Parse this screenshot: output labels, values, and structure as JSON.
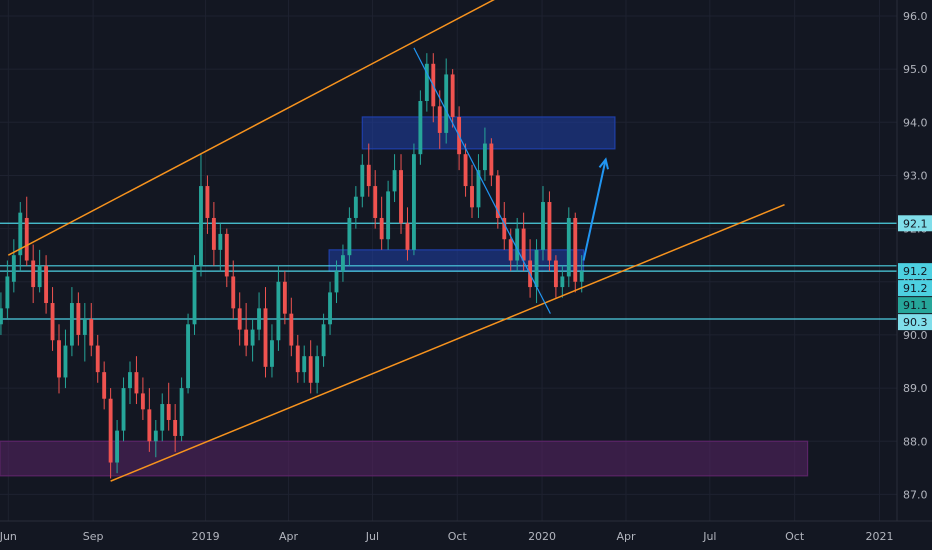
{
  "chart_data": {
    "type": "candlestick",
    "y_ticks": [
      87.0,
      88.0,
      89.0,
      90.0,
      91.0,
      92.0,
      93.0,
      94.0,
      95.0,
      96.0
    ],
    "y_tick_labels": [
      "87.0",
      "88.0",
      "89.0",
      "90.0",
      "91.0",
      "92.0",
      "93.0",
      "94.0",
      "95.0",
      "96.0"
    ],
    "ylim": [
      86.5,
      96.3
    ],
    "xlim": [
      "2018-05-23",
      "2021-01-20"
    ],
    "x_ticks": [
      {
        "date": "2018-06-01",
        "label": "Jun"
      },
      {
        "date": "2018-09-01",
        "label": "Sep"
      },
      {
        "date": "2019-01-01",
        "label": "2019"
      },
      {
        "date": "2019-04-01",
        "label": "Apr"
      },
      {
        "date": "2019-07-01",
        "label": "Jul"
      },
      {
        "date": "2019-10-01",
        "label": "Oct"
      },
      {
        "date": "2020-01-01",
        "label": "2020"
      },
      {
        "date": "2020-04-01",
        "label": "Apr"
      },
      {
        "date": "2020-07-01",
        "label": "Jul"
      },
      {
        "date": "2020-10-01",
        "label": "Oct"
      },
      {
        "date": "2021-01-01",
        "label": "2021"
      }
    ],
    "colors": {
      "background": "#131722",
      "grid": "#1e2230",
      "up": "#26a69a",
      "down": "#ef5350",
      "channel": "#f7931e",
      "hline": "#4dd0e1",
      "trendline": "#2196f3",
      "zone_blue": "#1f3fa8",
      "zone_purple": "#5a2466",
      "arrow": "#2196f3"
    },
    "price_badges": [
      {
        "value": 92.1,
        "label": "92.1",
        "color": "#80deea"
      },
      {
        "value": 91.2,
        "label": "91.2",
        "color": "#4dd0e1"
      },
      {
        "value": 91.2,
        "label": "91.2",
        "color": "#4dd0e1"
      },
      {
        "value": 91.1,
        "label": "91.1",
        "color": "#26a69a"
      },
      {
        "value": 90.3,
        "label": "90.3",
        "color": "#80deea"
      }
    ],
    "hlines": [
      92.1,
      91.3,
      91.2,
      90.3
    ],
    "zones": [
      {
        "name": "supply-zone",
        "x0": "2019-06-20",
        "x1": "2020-03-20",
        "y0": 93.5,
        "y1": 94.1,
        "color": "#1f3fa8"
      },
      {
        "name": "middle-zone",
        "x0": "2019-05-15",
        "x1": "2020-02-15",
        "y0": 91.2,
        "y1": 91.6,
        "color": "#1f3fa8"
      },
      {
        "name": "demand-zone",
        "x0": "2018-05-23",
        "x1": "2020-10-15",
        "y0": 87.35,
        "y1": 88.0,
        "color": "#5a2466"
      }
    ],
    "channel_lines": [
      {
        "name": "channel-upper",
        "x0": "2018-06-01",
        "y0": 91.5,
        "x1": "2019-12-01",
        "y1": 96.5
      },
      {
        "name": "channel-lower",
        "x0": "2018-09-20",
        "y0": 87.25,
        "x1": "2020-09-20",
        "y1": 92.45
      }
    ],
    "trendline": {
      "x0": "2019-08-15",
      "y0": 95.4,
      "x1": "2020-01-10",
      "y1": 90.4
    },
    "arrow": {
      "x0": "2020-02-15",
      "y0": 91.4,
      "x1": "2020-03-10",
      "y1": 93.3
    },
    "ohlc": [
      [
        "2018-05-24",
        90.2,
        90.8,
        90.0,
        90.5
      ],
      [
        "2018-05-31",
        90.5,
        91.4,
        90.3,
        91.1
      ],
      [
        "2018-06-07",
        91.0,
        91.8,
        90.8,
        91.5
      ],
      [
        "2018-06-14",
        91.5,
        92.5,
        91.2,
        92.3
      ],
      [
        "2018-06-21",
        92.2,
        92.6,
        91.3,
        91.4
      ],
      [
        "2018-06-28",
        91.4,
        91.7,
        90.6,
        90.9
      ],
      [
        "2018-07-05",
        90.9,
        91.6,
        90.8,
        91.3
      ],
      [
        "2018-07-12",
        91.3,
        91.5,
        90.4,
        90.6
      ],
      [
        "2018-07-19",
        90.6,
        90.9,
        89.7,
        89.9
      ],
      [
        "2018-07-26",
        89.9,
        90.2,
        88.9,
        89.2
      ],
      [
        "2018-08-02",
        89.2,
        90.1,
        89.0,
        89.8
      ],
      [
        "2018-08-09",
        89.8,
        90.9,
        89.6,
        90.6
      ],
      [
        "2018-08-16",
        90.6,
        90.8,
        89.8,
        90.0
      ],
      [
        "2018-08-23",
        90.0,
        90.6,
        89.5,
        90.3
      ],
      [
        "2018-08-30",
        90.3,
        90.6,
        89.6,
        89.8
      ],
      [
        "2018-09-06",
        89.8,
        90.0,
        89.1,
        89.3
      ],
      [
        "2018-09-13",
        89.3,
        89.5,
        88.6,
        88.8
      ],
      [
        "2018-09-20",
        88.8,
        89.0,
        87.3,
        87.6
      ],
      [
        "2018-09-27",
        87.6,
        88.4,
        87.4,
        88.2
      ],
      [
        "2018-10-04",
        88.2,
        89.2,
        88.0,
        89.0
      ],
      [
        "2018-10-11",
        89.0,
        89.5,
        88.7,
        89.3
      ],
      [
        "2018-10-18",
        89.3,
        89.6,
        88.7,
        88.9
      ],
      [
        "2018-10-25",
        88.9,
        89.2,
        88.4,
        88.6
      ],
      [
        "2018-11-01",
        88.6,
        89.0,
        87.8,
        88.0
      ],
      [
        "2018-11-08",
        88.0,
        88.4,
        87.7,
        88.2
      ],
      [
        "2018-11-15",
        88.2,
        88.9,
        88.0,
        88.7
      ],
      [
        "2018-11-22",
        88.7,
        89.1,
        88.2,
        88.4
      ],
      [
        "2018-11-29",
        88.4,
        88.7,
        87.8,
        88.1
      ],
      [
        "2018-12-06",
        88.1,
        89.2,
        88.0,
        89.0
      ],
      [
        "2018-12-13",
        89.0,
        90.4,
        88.9,
        90.2
      ],
      [
        "2018-12-20",
        90.2,
        91.5,
        90.0,
        91.3
      ],
      [
        "2018-12-27",
        91.3,
        93.4,
        91.1,
        92.8
      ],
      [
        "2019-01-03",
        92.8,
        93.0,
        91.9,
        92.2
      ],
      [
        "2019-01-10",
        92.2,
        92.5,
        91.3,
        91.6
      ],
      [
        "2019-01-17",
        91.6,
        92.1,
        91.2,
        91.9
      ],
      [
        "2019-01-24",
        91.9,
        92.0,
        90.9,
        91.1
      ],
      [
        "2019-01-31",
        91.1,
        91.4,
        90.3,
        90.5
      ],
      [
        "2019-02-07",
        90.5,
        90.8,
        89.8,
        90.1
      ],
      [
        "2019-02-14",
        90.1,
        90.6,
        89.6,
        89.8
      ],
      [
        "2019-02-21",
        89.8,
        90.3,
        89.5,
        90.1
      ],
      [
        "2019-02-28",
        90.1,
        90.8,
        89.9,
        90.5
      ],
      [
        "2019-03-07",
        90.5,
        90.9,
        89.2,
        89.4
      ],
      [
        "2019-03-14",
        89.4,
        90.2,
        89.2,
        89.9
      ],
      [
        "2019-03-21",
        89.9,
        91.3,
        89.7,
        91.0
      ],
      [
        "2019-03-28",
        91.0,
        91.2,
        90.2,
        90.4
      ],
      [
        "2019-04-04",
        90.4,
        90.7,
        89.6,
        89.8
      ],
      [
        "2019-04-11",
        89.8,
        90.0,
        89.1,
        89.3
      ],
      [
        "2019-04-18",
        89.3,
        89.8,
        89.1,
        89.6
      ],
      [
        "2019-04-25",
        89.6,
        89.9,
        88.9,
        89.1
      ],
      [
        "2019-05-02",
        89.1,
        89.8,
        88.9,
        89.6
      ],
      [
        "2019-05-09",
        89.6,
        90.4,
        89.4,
        90.2
      ],
      [
        "2019-05-16",
        90.2,
        91.0,
        90.0,
        90.8
      ],
      [
        "2019-05-23",
        90.8,
        91.4,
        90.6,
        91.2
      ],
      [
        "2019-05-30",
        91.2,
        91.7,
        91.0,
        91.5
      ],
      [
        "2019-06-06",
        91.5,
        92.4,
        91.3,
        92.2
      ],
      [
        "2019-06-13",
        92.2,
        92.8,
        92.0,
        92.6
      ],
      [
        "2019-06-20",
        92.6,
        93.4,
        92.4,
        93.2
      ],
      [
        "2019-06-27",
        93.2,
        93.6,
        92.6,
        92.8
      ],
      [
        "2019-07-04",
        92.8,
        93.1,
        92.0,
        92.2
      ],
      [
        "2019-07-11",
        92.2,
        92.6,
        91.6,
        91.8
      ],
      [
        "2019-07-18",
        91.8,
        92.9,
        91.6,
        92.7
      ],
      [
        "2019-07-25",
        92.7,
        93.4,
        92.5,
        93.1
      ],
      [
        "2019-08-01",
        93.1,
        93.4,
        91.9,
        92.1
      ],
      [
        "2019-08-08",
        92.1,
        92.4,
        91.4,
        91.6
      ],
      [
        "2019-08-15",
        91.6,
        93.6,
        91.5,
        93.4
      ],
      [
        "2019-08-22",
        93.4,
        94.6,
        93.2,
        94.4
      ],
      [
        "2019-08-29",
        94.4,
        95.3,
        94.2,
        95.1
      ],
      [
        "2019-09-05",
        95.1,
        95.3,
        94.0,
        94.3
      ],
      [
        "2019-09-12",
        94.3,
        94.6,
        93.5,
        93.8
      ],
      [
        "2019-09-19",
        93.8,
        95.2,
        93.6,
        94.9
      ],
      [
        "2019-09-26",
        94.9,
        95.0,
        93.9,
        94.1
      ],
      [
        "2019-10-03",
        94.1,
        94.3,
        93.1,
        93.4
      ],
      [
        "2019-10-10",
        93.4,
        93.6,
        92.6,
        92.8
      ],
      [
        "2019-10-17",
        92.8,
        93.2,
        92.2,
        92.4
      ],
      [
        "2019-10-24",
        92.4,
        93.4,
        92.2,
        93.1
      ],
      [
        "2019-10-31",
        93.1,
        93.9,
        92.9,
        93.6
      ],
      [
        "2019-11-07",
        93.6,
        93.7,
        92.8,
        93.0
      ],
      [
        "2019-11-14",
        93.0,
        93.1,
        92.0,
        92.2
      ],
      [
        "2019-11-21",
        92.2,
        92.5,
        91.6,
        91.8
      ],
      [
        "2019-11-28",
        91.8,
        92.0,
        91.2,
        91.4
      ],
      [
        "2019-12-05",
        91.4,
        92.2,
        91.2,
        92.0
      ],
      [
        "2019-12-12",
        92.0,
        92.3,
        91.2,
        91.4
      ],
      [
        "2019-12-19",
        91.4,
        91.8,
        90.7,
        90.9
      ],
      [
        "2019-12-26",
        90.9,
        91.8,
        90.6,
        91.6
      ],
      [
        "2020-01-02",
        91.6,
        92.8,
        91.4,
        92.5
      ],
      [
        "2020-01-09",
        92.5,
        92.7,
        91.2,
        91.4
      ],
      [
        "2020-01-16",
        91.4,
        91.5,
        90.7,
        90.9
      ],
      [
        "2020-01-23",
        90.9,
        91.3,
        90.7,
        91.1
      ],
      [
        "2020-01-30",
        91.1,
        92.4,
        90.9,
        92.2
      ],
      [
        "2020-02-06",
        92.2,
        92.3,
        90.8,
        91.0
      ],
      [
        "2020-02-13",
        91.0,
        91.5,
        90.8,
        91.2
      ]
    ]
  }
}
